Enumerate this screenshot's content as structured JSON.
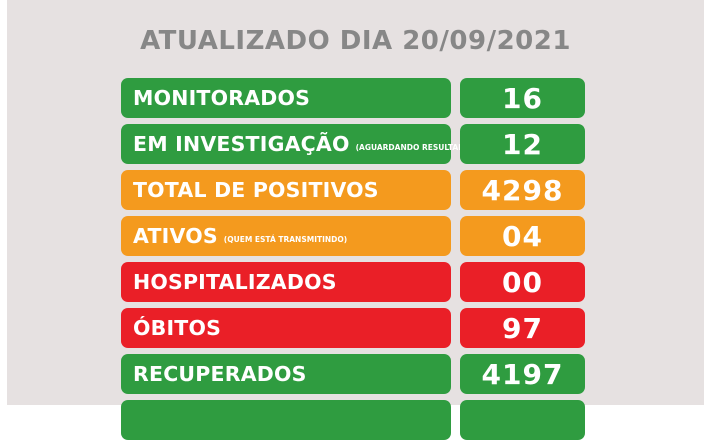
{
  "header": {
    "title": "ATUALIZADO DIA 20/09/2021"
  },
  "rows": [
    {
      "label": "MONITORADOS",
      "sub": "",
      "value": "16",
      "color": "#2f9c40"
    },
    {
      "label": "EM INVESTIGAÇÃO",
      "sub": "(AGUARDANDO RESULTADO)",
      "value": "12",
      "color": "#2f9c40"
    },
    {
      "label": "TOTAL DE POSITIVOS",
      "sub": "",
      "value": "4298",
      "color": "#f49a1e"
    },
    {
      "label": "ATIVOS",
      "sub": "(QUEM ESTÁ TRANSMITINDO)",
      "value": "04",
      "color": "#f49a1e"
    },
    {
      "label": "HOSPITALIZADOS",
      "sub": "",
      "value": "00",
      "color": "#ea1f27"
    },
    {
      "label": "ÓBITOS",
      "sub": "",
      "value": "97",
      "color": "#ea1f27"
    },
    {
      "label": "RECUPERADOS",
      "sub": "",
      "value": "4197",
      "color": "#2f9c40"
    }
  ]
}
